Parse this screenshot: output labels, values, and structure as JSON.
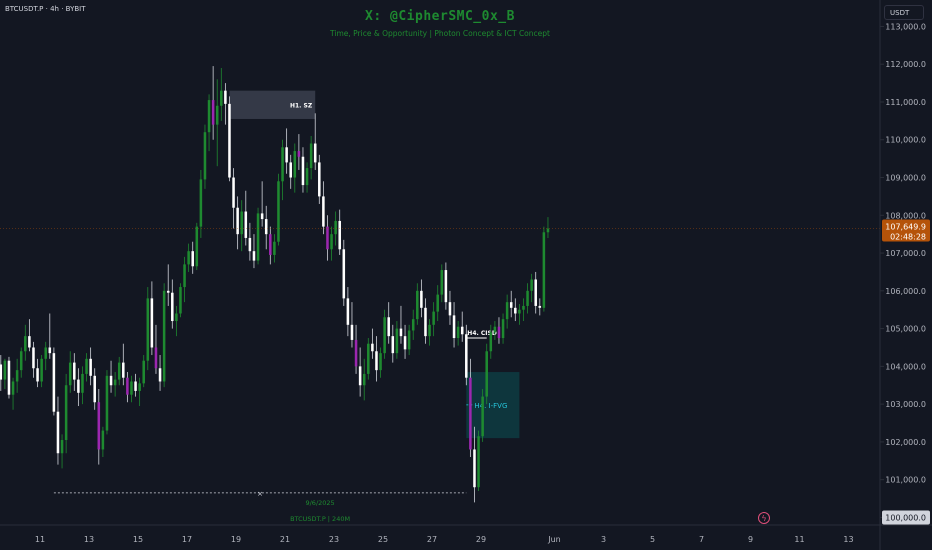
{
  "header": {
    "symbol": "BTCUSDT.P · 4h · BYBIT",
    "currency": "USDT",
    "watermark_title": "X: @CipherSMC_0x_B",
    "watermark_subtitle": "Time, Price & Opportunity | Photon Concept & ICT Concept"
  },
  "colors": {
    "background": "#131722",
    "up": "#1e8a30",
    "down": "#ffffff",
    "accent_down": "#9c27b0",
    "price_badge": "#b55309",
    "fvg": "#0e3a40"
  },
  "chart_data": {
    "type": "candlestick",
    "ylim": [
      99800,
      113700
    ],
    "y_ticks": [
      100000,
      101000,
      102000,
      103000,
      104000,
      105000,
      106000,
      107000,
      108000,
      109000,
      110000,
      111000,
      112000,
      113000
    ],
    "y_tick_labels": [
      "100,000.0",
      "101,000.0",
      "102,000.0",
      "103,000.0",
      "104,000.0",
      "105,000.0",
      "106,000.0",
      "107,000.0",
      "108,000.0",
      "109,000.0",
      "110,000.0",
      "111,000.0",
      "112,000.0",
      "113,000.0"
    ],
    "x_ticks": [
      {
        "label": "11",
        "day": 11
      },
      {
        "label": "13",
        "day": 13
      },
      {
        "label": "15",
        "day": 15
      },
      {
        "label": "17",
        "day": 17
      },
      {
        "label": "19",
        "day": 19
      },
      {
        "label": "21",
        "day": 21
      },
      {
        "label": "23",
        "day": 23
      },
      {
        "label": "25",
        "day": 25
      },
      {
        "label": "27",
        "day": 27
      },
      {
        "label": "29",
        "day": 29
      },
      {
        "label": "Jun",
        "day": 32
      },
      {
        "label": "3",
        "day": 34
      },
      {
        "label": "5",
        "day": 36
      },
      {
        "label": "7",
        "day": 38
      },
      {
        "label": "9",
        "day": 40
      },
      {
        "label": "11",
        "day": 42
      },
      {
        "label": "13",
        "day": 44
      }
    ],
    "day_start": 9.4,
    "candles_per_day": 6,
    "candles": [
      [
        104050,
        104300,
        103350,
        103650
      ],
      [
        103650,
        104200,
        103400,
        104150
      ],
      [
        104150,
        104250,
        103150,
        103250
      ],
      [
        103250,
        103700,
        102850,
        103600
      ],
      [
        103600,
        104200,
        103300,
        103900
      ],
      [
        103900,
        104500,
        103700,
        104400
      ],
      [
        104400,
        105100,
        104150,
        104800
      ],
      [
        104800,
        105250,
        104400,
        104500
      ],
      [
        104500,
        104650,
        103700,
        103950
      ],
      [
        103950,
        104200,
        103450,
        103600
      ],
      [
        103600,
        104300,
        103450,
        104200
      ],
      [
        104200,
        104650,
        103900,
        104500
      ],
      [
        104500,
        105400,
        104200,
        104350
      ],
      [
        104350,
        104500,
        102700,
        102800
      ],
      [
        102800,
        103200,
        101400,
        101700
      ],
      [
        101700,
        102200,
        101300,
        102050
      ],
      [
        102050,
        103800,
        101700,
        103500
      ],
      [
        103500,
        104400,
        103300,
        104100
      ],
      [
        104100,
        104350,
        103350,
        103650
      ],
      [
        103650,
        103950,
        102950,
        103300
      ],
      [
        103300,
        104000,
        103000,
        103800
      ],
      [
        103800,
        104350,
        103600,
        104200
      ],
      [
        104200,
        104500,
        103500,
        103750
      ],
      [
        103750,
        103950,
        102850,
        103050
      ],
      [
        103050,
        103400,
        101400,
        101800
      ],
      [
        101800,
        102400,
        101600,
        102300
      ],
      [
        102300,
        103900,
        102200,
        103750
      ],
      [
        103750,
        104150,
        103300,
        103500
      ],
      [
        103500,
        103850,
        103200,
        103650
      ],
      [
        103650,
        104250,
        103500,
        104100
      ],
      [
        104100,
        104600,
        103500,
        103700
      ],
      [
        103700,
        103850,
        103050,
        103250
      ],
      [
        103250,
        103750,
        103050,
        103600
      ],
      [
        103600,
        103800,
        103200,
        103350
      ],
      [
        103350,
        103700,
        102950,
        103550
      ],
      [
        103550,
        104300,
        103450,
        104150
      ],
      [
        104150,
        106100,
        103900,
        105800
      ],
      [
        105800,
        106250,
        104300,
        104500
      ],
      [
        104500,
        105100,
        103800,
        103950
      ],
      [
        103950,
        104300,
        103350,
        103600
      ],
      [
        103600,
        106200,
        103450,
        106000
      ],
      [
        106000,
        106700,
        105600,
        105950
      ],
      [
        105950,
        106300,
        105000,
        105200
      ],
      [
        105200,
        105600,
        104800,
        105400
      ],
      [
        105400,
        106200,
        105300,
        106100
      ],
      [
        106100,
        106900,
        105700,
        106700
      ],
      [
        106700,
        107250,
        106500,
        107050
      ],
      [
        107050,
        107300,
        106450,
        106650
      ],
      [
        106650,
        107800,
        106550,
        107700
      ],
      [
        107700,
        109200,
        107400,
        108950
      ],
      [
        108950,
        110400,
        108700,
        110200
      ],
      [
        110200,
        111200,
        109700,
        111050
      ],
      [
        111050,
        111950,
        110000,
        110400
      ],
      [
        110400,
        111600,
        109300,
        110900
      ],
      [
        110900,
        111900,
        110500,
        111300
      ],
      [
        111300,
        111500,
        110400,
        110950
      ],
      [
        110950,
        111150,
        108900,
        109000
      ],
      [
        109000,
        109250,
        107650,
        108200
      ],
      [
        108200,
        108500,
        107100,
        107500
      ],
      [
        107500,
        108400,
        107050,
        108100
      ],
      [
        108100,
        108650,
        107200,
        107400
      ],
      [
        107400,
        107800,
        106800,
        107050
      ],
      [
        107050,
        107500,
        106600,
        106800
      ],
      [
        106800,
        108200,
        106700,
        108050
      ],
      [
        108050,
        108900,
        107700,
        107900
      ],
      [
        107900,
        108250,
        107100,
        107500
      ],
      [
        107500,
        107700,
        106700,
        106950
      ],
      [
        106950,
        107500,
        106750,
        107300
      ],
      [
        107300,
        109100,
        107200,
        108900
      ],
      [
        108900,
        110000,
        108400,
        109800
      ],
      [
        109800,
        110300,
        109100,
        109400
      ],
      [
        109400,
        109600,
        108700,
        109000
      ],
      [
        109000,
        109900,
        108600,
        109700
      ],
      [
        109700,
        110150,
        109200,
        109550
      ],
      [
        109550,
        109800,
        108600,
        108800
      ],
      [
        108800,
        109400,
        108600,
        109250
      ],
      [
        109250,
        110100,
        108950,
        109900
      ],
      [
        109900,
        110700,
        109200,
        109400
      ],
      [
        109400,
        109600,
        108300,
        108500
      ],
      [
        108500,
        108900,
        107500,
        107700
      ],
      [
        107700,
        108000,
        106800,
        107100
      ],
      [
        107100,
        107700,
        106800,
        107500
      ],
      [
        107500,
        108100,
        107200,
        107850
      ],
      [
        107850,
        108150,
        106950,
        107100
      ],
      [
        107100,
        107350,
        105600,
        105800
      ],
      [
        105800,
        106100,
        104800,
        105100
      ],
      [
        105100,
        105700,
        104500,
        104700
      ],
      [
        104700,
        105100,
        103800,
        104000
      ],
      [
        104000,
        104500,
        103200,
        103500
      ],
      [
        103500,
        104200,
        103100,
        103800
      ],
      [
        103800,
        104750,
        103650,
        104600
      ],
      [
        104600,
        105000,
        104200,
        104400
      ],
      [
        104400,
        104800,
        103600,
        103900
      ],
      [
        103900,
        104500,
        103700,
        104350
      ],
      [
        104350,
        105500,
        104200,
        105300
      ],
      [
        105300,
        105700,
        104600,
        104800
      ],
      [
        104800,
        105100,
        104100,
        104350
      ],
      [
        104350,
        105200,
        104200,
        105000
      ],
      [
        105000,
        105600,
        104600,
        104800
      ],
      [
        104800,
        105100,
        104200,
        104450
      ],
      [
        104450,
        105100,
        104300,
        104950
      ],
      [
        104950,
        105500,
        104700,
        105250
      ],
      [
        105250,
        106200,
        105100,
        106000
      ],
      [
        106000,
        106300,
        105300,
        105550
      ],
      [
        105550,
        105800,
        104600,
        104800
      ],
      [
        104800,
        105250,
        104550,
        105100
      ],
      [
        105100,
        105700,
        104800,
        105450
      ],
      [
        105450,
        106150,
        105200,
        105900
      ],
      [
        105900,
        106700,
        105700,
        106550
      ],
      [
        106550,
        106750,
        105500,
        105700
      ],
      [
        105700,
        106000,
        105100,
        105350
      ],
      [
        105350,
        105700,
        104500,
        104750
      ],
      [
        104750,
        105200,
        104550,
        105050
      ],
      [
        105050,
        105450,
        104650,
        104850
      ],
      [
        104850,
        105100,
        103500,
        103700
      ],
      [
        103700,
        104200,
        101600,
        101800
      ],
      [
        101800,
        102400,
        100400,
        100800
      ],
      [
        100800,
        102300,
        100700,
        102150
      ],
      [
        102150,
        103400,
        102000,
        103200
      ],
      [
        103200,
        104600,
        103000,
        104400
      ],
      [
        104400,
        105100,
        104200,
        104900
      ],
      [
        104900,
        105200,
        104700,
        105050
      ],
      [
        105050,
        105300,
        104600,
        104750
      ],
      [
        104750,
        105400,
        104600,
        105250
      ],
      [
        105250,
        105900,
        105000,
        105700
      ],
      [
        105700,
        106000,
        105300,
        105550
      ],
      [
        105550,
        105800,
        105200,
        105400
      ],
      [
        105400,
        105650,
        105100,
        105500
      ],
      [
        105500,
        105800,
        105200,
        105600
      ],
      [
        105600,
        106200,
        105400,
        106000
      ],
      [
        106000,
        106450,
        105700,
        106300
      ],
      [
        106300,
        106500,
        105400,
        105600
      ],
      [
        105600,
        105800,
        105350,
        105550
      ],
      [
        105550,
        107700,
        105450,
        107550
      ],
      [
        107550,
        107950,
        107400,
        107650
      ]
    ],
    "current_price": 107649.9,
    "current_price_label": "107,649.9",
    "countdown": "02:48:28",
    "price_line_label": "100,000.0",
    "annotations": {
      "h1_sz": {
        "label": "H1. SZ",
        "top": 111300,
        "bottom": 110550,
        "start_index": 56,
        "end_index": 77
      },
      "h4_cisd": {
        "label": "H4. CISD",
        "price": 104750,
        "start_index": 114,
        "end_index": 119
      },
      "h4_ifvg": {
        "label": "H4. I-FVG",
        "top": 103850,
        "bottom": 102100,
        "start_index": 114,
        "end_index": 127,
        "mid": 102980
      },
      "low_line": {
        "date_label": "9/6/2025",
        "price": 100650,
        "start_index": 13,
        "end_index": 114
      }
    },
    "bottom_label": "BTCUSDT.P | 240M"
  }
}
